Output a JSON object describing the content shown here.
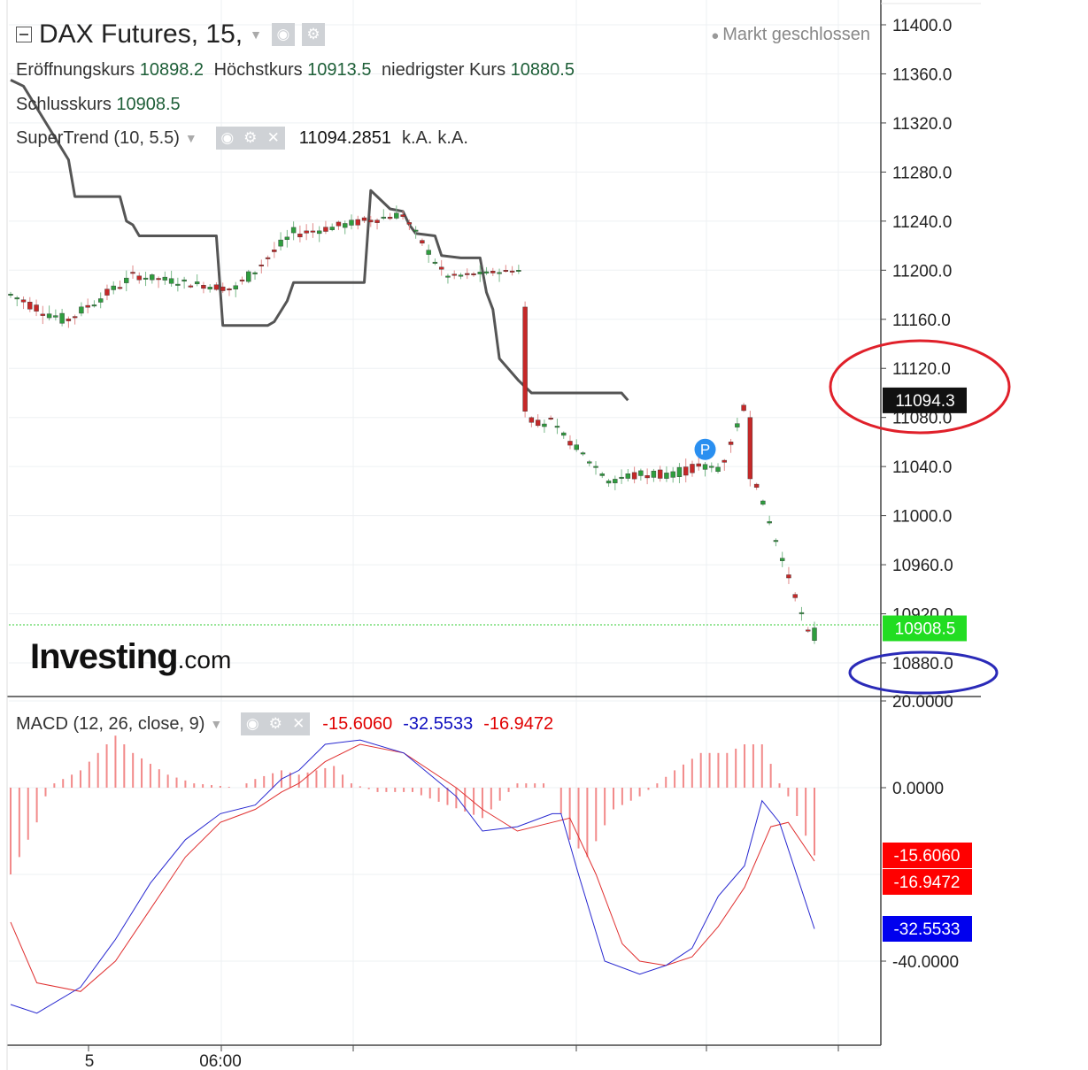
{
  "header": {
    "symbol": "DAX Futures, 15,",
    "market_status": "Markt geschlossen",
    "ohlc": [
      {
        "label": "Eröffnungskurs",
        "value": "10898.2"
      },
      {
        "label": "Höchstkurs",
        "value": "10913.5"
      },
      {
        "label": "niedrigster Kurs",
        "value": "10880.5"
      },
      {
        "label": "Schlusskurs",
        "value": "10908.5"
      }
    ],
    "supertrend": {
      "label": "SuperTrend (10, 5.5)",
      "value": "11094.2851",
      "v2": "k.A.",
      "v3": "k.A."
    },
    "macd": {
      "label": "MACD (12, 26, close, 9)",
      "hist": "-15.6060",
      "macd": "-32.5533",
      "signal": "-16.9472"
    }
  },
  "logo": {
    "brand": "Investing",
    "suffix": ".com"
  },
  "colors": {
    "up": "#2e9e3e",
    "down": "#c62828",
    "supertrend": "#555555",
    "macd_line": "#2828d0",
    "signal_line": "#e03030",
    "hist": "#f28a8a",
    "last_price_tag": "#22dd22",
    "circle_red": "#e0202a",
    "circle_blue": "#2a2ab8"
  },
  "chart_data": [
    {
      "type": "candlestick",
      "title": "DAX Futures, 15,",
      "y_ticks": [
        "11400.0",
        "11360.0",
        "11320.0",
        "11280.0",
        "11240.0",
        "11200.0",
        "11160.0",
        "11120.0",
        "11080.0",
        "11040.0",
        "11000.0",
        "10960.0",
        "10920.0",
        "10880.0"
      ],
      "x_labels": [
        "5",
        "06:00"
      ],
      "ylim": [
        10855,
        11415
      ],
      "price_tags": [
        {
          "text": "11094.3",
          "value": 11094.3,
          "bg": "#111111",
          "fg": "#ffffff"
        },
        {
          "text": "10908.5",
          "value": 10908.5,
          "bg": "#22dd22",
          "fg": "#ffffff"
        }
      ],
      "marker": {
        "text": "P",
        "x": 108,
        "y": 11054
      },
      "annotations": [
        {
          "shape": "ellipse",
          "color": "red",
          "around_value": 11105
        },
        {
          "shape": "ellipse",
          "color": "blue",
          "around_value": 10875
        }
      ],
      "segments": [
        {
          "n": 9,
          "from": 11180,
          "to": 11160,
          "noise": 10
        },
        {
          "n": 11,
          "from": 11160,
          "to": 11195,
          "noise": 8
        },
        {
          "n": 15,
          "from": 11195,
          "to": 11185,
          "noise": 6
        },
        {
          "n": 10,
          "from": 11185,
          "to": 11230,
          "noise": 10
        },
        {
          "n": 16,
          "from": 11230,
          "to": 11245,
          "noise": 7
        },
        {
          "n": 7,
          "from": 11245,
          "to": 11200,
          "noise": 6
        },
        {
          "n": 12,
          "from": 11195,
          "to": 11200,
          "noise": 3
        },
        {
          "n": 1,
          "from": 11170,
          "to": 11085,
          "noise": 0
        },
        {
          "n": 4,
          "from": 11080,
          "to": 11075,
          "noise": 10
        },
        {
          "n": 8,
          "from": 11070,
          "to": 11035,
          "noise": 6
        },
        {
          "n": 18,
          "from": 11030,
          "to": 11040,
          "noise": 10
        },
        {
          "n": 4,
          "from": 11045,
          "to": 11088,
          "noise": 6
        },
        {
          "n": 1,
          "from": 11080,
          "to": 11030,
          "noise": 0
        },
        {
          "n": 9,
          "from": 11025,
          "to": 10905,
          "noise": 4
        },
        {
          "n": 1,
          "from": 10898.2,
          "to": 10908.5,
          "noise": 0
        }
      ],
      "supertrend_path": [
        [
          0,
          11355
        ],
        [
          2,
          11350
        ],
        [
          9,
          11290
        ],
        [
          10,
          11260
        ],
        [
          17,
          11260
        ],
        [
          18,
          11240
        ],
        [
          19,
          11237
        ],
        [
          20,
          11228
        ],
        [
          32,
          11228
        ],
        [
          33,
          11155
        ],
        [
          40,
          11155
        ],
        [
          41,
          11158
        ],
        [
          43,
          11175
        ],
        [
          44,
          11190
        ],
        [
          50,
          11190
        ],
        [
          55,
          11190
        ],
        [
          56,
          11265
        ],
        [
          58,
          11255
        ],
        [
          59,
          11250
        ],
        [
          61,
          11248
        ],
        [
          62,
          11237
        ],
        [
          63,
          11230
        ],
        [
          66,
          11228
        ],
        [
          67,
          11212
        ],
        [
          70,
          11210
        ],
        [
          73,
          11210
        ],
        [
          74,
          11182
        ],
        [
          75,
          11168
        ],
        [
          76,
          11128
        ],
        [
          79,
          11110
        ],
        [
          81,
          11100
        ],
        [
          95,
          11100
        ],
        [
          96,
          11094
        ]
      ]
    },
    {
      "type": "bar+line",
      "title": "MACD (12, 26, close, 9)",
      "y_ticks": [
        "20.0000",
        "0.0000",
        "-40.0000"
      ],
      "ylim": [
        -63,
        22
      ],
      "last_values": [
        {
          "text": "-15.6060",
          "value": -15.606,
          "bg": "#ff0000"
        },
        {
          "text": "-16.9472",
          "value": -16.9472,
          "bg": "#ff0000"
        },
        {
          "text": "-32.5533",
          "value": -32.5533,
          "bg": "#0000ee"
        }
      ],
      "series": [
        {
          "name": "MACD",
          "points": [
            [
              0,
              -50
            ],
            [
              3,
              -52
            ],
            [
              8,
              -46
            ],
            [
              12,
              -35
            ],
            [
              16,
              -22
            ],
            [
              20,
              -12
            ],
            [
              24,
              -6
            ],
            [
              28,
              -4
            ],
            [
              31,
              2
            ],
            [
              33,
              4
            ],
            [
              36,
              10
            ],
            [
              40,
              11
            ],
            [
              45,
              8
            ],
            [
              51,
              -2
            ],
            [
              54,
              -10
            ],
            [
              58,
              -9
            ],
            [
              62,
              -6
            ],
            [
              63,
              -6
            ],
            [
              65,
              -20
            ],
            [
              68,
              -40
            ],
            [
              72,
              -43
            ],
            [
              75,
              -41
            ],
            [
              78,
              -37
            ],
            [
              81,
              -25
            ],
            [
              84,
              -18
            ],
            [
              86,
              -3
            ],
            [
              88,
              -8
            ],
            [
              92,
              -32.5533
            ]
          ]
        },
        {
          "name": "Signal",
          "points": [
            [
              0,
              -31
            ],
            [
              3,
              -45
            ],
            [
              8,
              -47
            ],
            [
              12,
              -40
            ],
            [
              16,
              -28
            ],
            [
              20,
              -16
            ],
            [
              24,
              -8
            ],
            [
              28,
              -5
            ],
            [
              31,
              -1
            ],
            [
              33,
              1
            ],
            [
              36,
              6
            ],
            [
              40,
              10
            ],
            [
              45,
              8
            ],
            [
              51,
              0
            ],
            [
              54,
              -5
            ],
            [
              58,
              -10
            ],
            [
              62,
              -8
            ],
            [
              64,
              -7
            ],
            [
              67,
              -20
            ],
            [
              70,
              -36
            ],
            [
              72,
              -40
            ],
            [
              75,
              -41
            ],
            [
              78,
              -39
            ],
            [
              81,
              -32
            ],
            [
              84,
              -23
            ],
            [
              87,
              -9
            ],
            [
              89,
              -8
            ],
            [
              92,
              -16.9472
            ]
          ]
        },
        {
          "name": "Histogram",
          "points": [
            [
              0,
              -20
            ],
            [
              3,
              -8
            ],
            [
              4,
              -2
            ],
            [
              5,
              1
            ],
            [
              8,
              4
            ],
            [
              12,
              12
            ],
            [
              14,
              8
            ],
            [
              18,
              3
            ],
            [
              21,
              1
            ],
            [
              26,
              0
            ],
            [
              28,
              2
            ],
            [
              31,
              4
            ],
            [
              33,
              3
            ],
            [
              37,
              5
            ],
            [
              39,
              1
            ],
            [
              42,
              -1
            ],
            [
              46,
              -1
            ],
            [
              50,
              -4
            ],
            [
              54,
              -7
            ],
            [
              56,
              -3
            ],
            [
              58,
              1
            ],
            [
              61,
              1
            ],
            [
              62,
              0
            ],
            [
              64,
              -12
            ],
            [
              66,
              -16
            ],
            [
              69,
              -5
            ],
            [
              72,
              -2
            ],
            [
              74,
              1
            ],
            [
              76,
              4
            ],
            [
              79,
              8
            ],
            [
              82,
              8
            ],
            [
              84,
              10
            ],
            [
              86,
              10
            ],
            [
              88,
              1
            ],
            [
              89,
              -2
            ],
            [
              92,
              -15.606
            ]
          ]
        }
      ]
    }
  ]
}
